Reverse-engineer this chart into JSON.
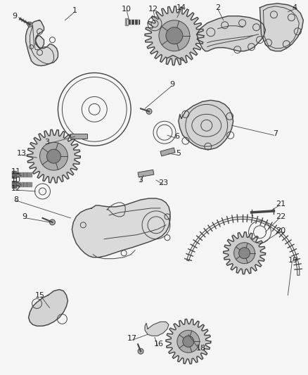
{
  "background_color": "#f5f5f5",
  "line_color": "#444444",
  "label_color": "#222222",
  "fig_width": 4.38,
  "fig_height": 5.33,
  "dpi": 100
}
